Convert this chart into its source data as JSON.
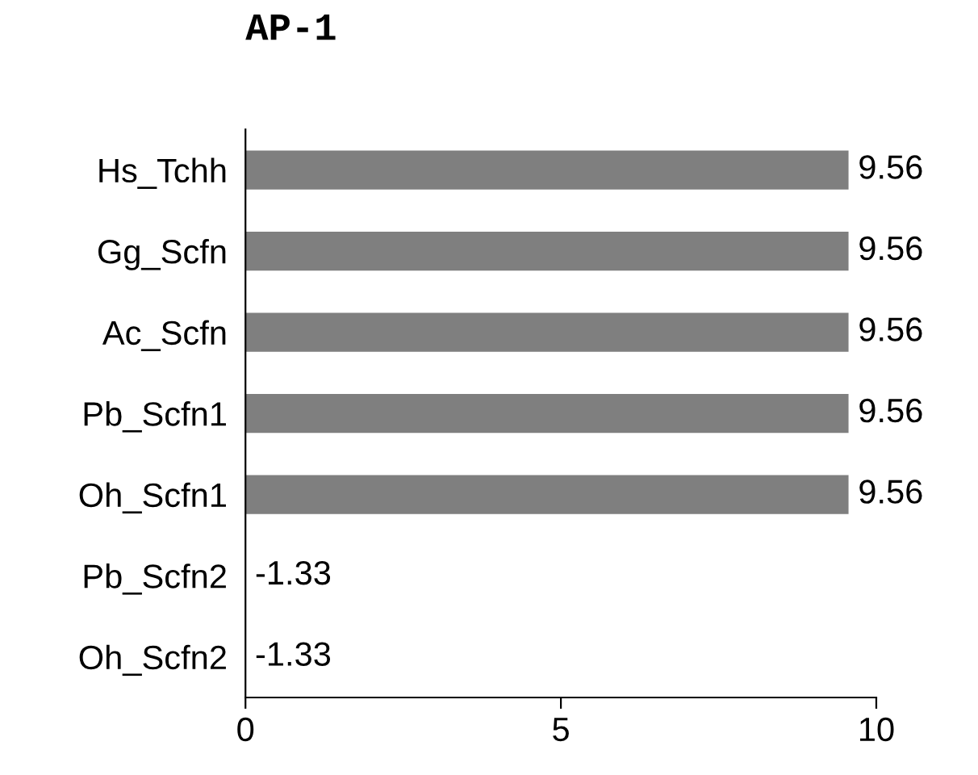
{
  "chart_data": {
    "type": "bar",
    "orientation": "horizontal",
    "title": "AP-1",
    "categories": [
      "Hs_Tchh",
      "Gg_Scfn",
      "Ac_Scfn",
      "Pb_Scfn1",
      "Oh_Scfn1",
      "Pb_Scfn2",
      "Oh_Scfn2"
    ],
    "values": [
      9.56,
      9.56,
      9.56,
      9.56,
      9.56,
      null,
      null
    ],
    "value_labels": [
      "9.56",
      "9.56",
      "9.56",
      "9.56",
      "9.56",
      "-1.33",
      "-1.33"
    ],
    "color": "#7f7f7f",
    "xlim": [
      0,
      10
    ],
    "xticks": [
      0,
      5,
      10
    ],
    "grid": false
  }
}
